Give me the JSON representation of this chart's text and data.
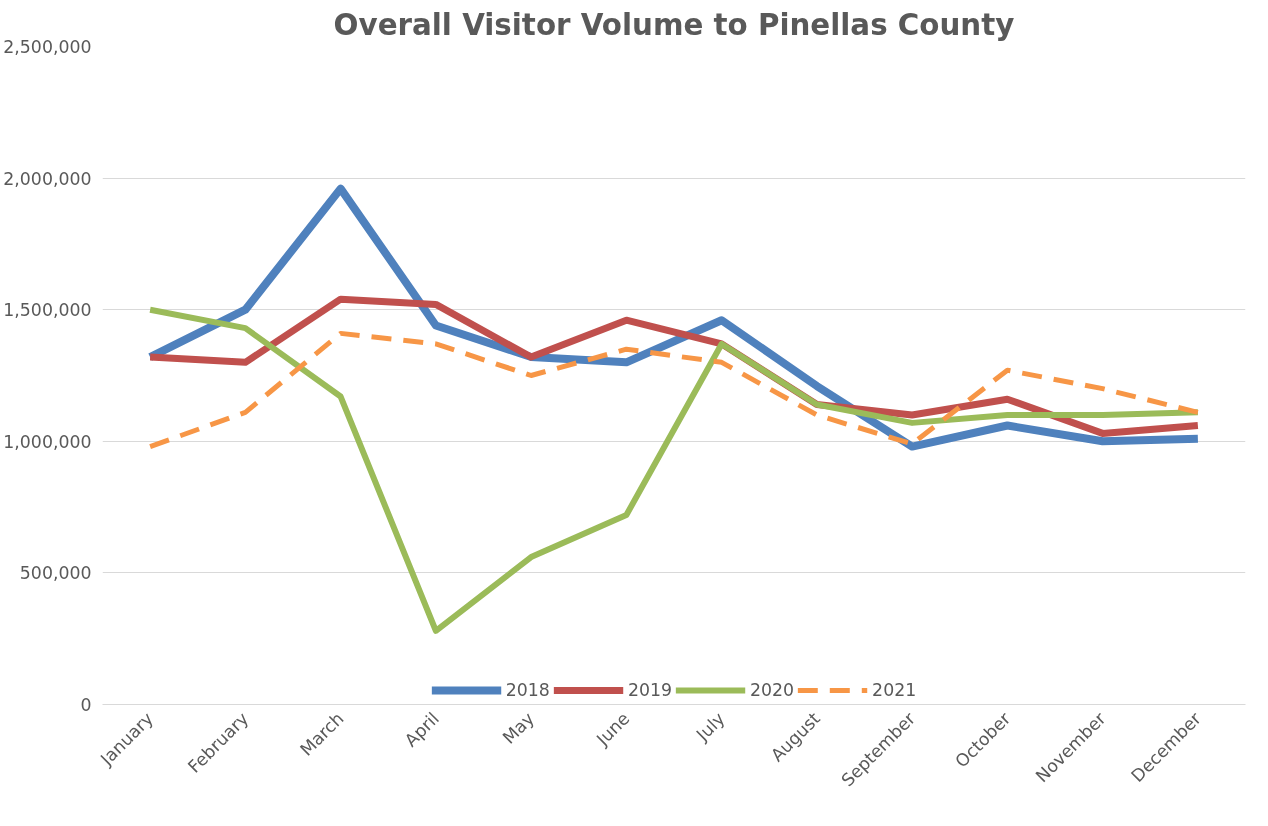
{
  "chart_data": {
    "type": "line",
    "title": "Overall Visitor Volume to Pinellas County",
    "categories": [
      "January",
      "February",
      "March",
      "April",
      "May",
      "June",
      "July",
      "August",
      "September",
      "October",
      "November",
      "December"
    ],
    "series": [
      {
        "name": "2018",
        "color": "#4f81bd",
        "line_style": "solid",
        "values": [
          1320000,
          1500000,
          1960000,
          1440000,
          1320000,
          1300000,
          1460000,
          1210000,
          980000,
          1060000,
          1000000,
          1010000
        ]
      },
      {
        "name": "2019",
        "color": "#c0504d",
        "line_style": "solid",
        "values": [
          1320000,
          1300000,
          1540000,
          1520000,
          1320000,
          1460000,
          1370000,
          1140000,
          1100000,
          1160000,
          1030000,
          1060000
        ]
      },
      {
        "name": "2020",
        "color": "#9bbb59",
        "line_style": "solid",
        "values": [
          1500000,
          1430000,
          1170000,
          280000,
          560000,
          720000,
          1370000,
          1140000,
          1070000,
          1100000,
          1100000,
          1110000
        ]
      },
      {
        "name": "2021",
        "color": "#f79646",
        "line_style": "dashed",
        "values": [
          980000,
          1110000,
          1410000,
          1370000,
          1250000,
          1350000,
          1300000,
          1100000,
          990000,
          1270000,
          1200000,
          1110000
        ]
      }
    ],
    "ylim": [
      0,
      2500000
    ],
    "yticks": [
      {
        "value": 0,
        "label": "0"
      },
      {
        "value": 500000,
        "label": "500,000"
      },
      {
        "value": 1000000,
        "label": "1,000,000"
      },
      {
        "value": 1500000,
        "label": "1,500,000"
      },
      {
        "value": 2000000,
        "label": "2,000,000"
      },
      {
        "value": 2500000,
        "label": "2,500,000"
      }
    ],
    "grid": "y",
    "legend": "bottom",
    "marker": "none"
  }
}
